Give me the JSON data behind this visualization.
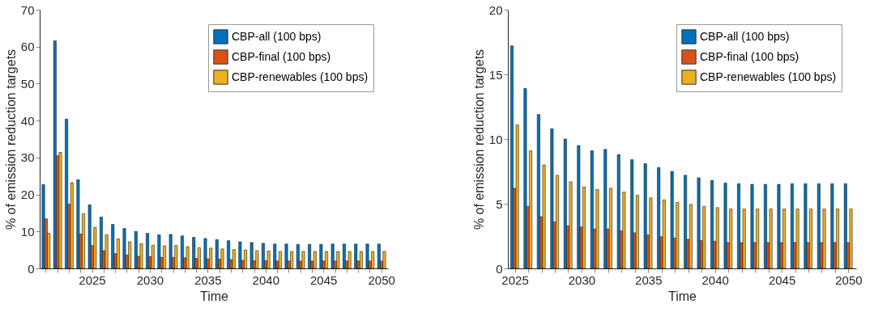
{
  "chart_data": [
    {
      "type": "bar",
      "xlabel": "Time",
      "ylabel": "% of emission reduction targets",
      "categories": [
        null,
        null,
        null,
        null,
        "2025",
        null,
        null,
        null,
        null,
        "2030",
        null,
        null,
        null,
        null,
        "2035",
        null,
        null,
        null,
        null,
        "2040",
        null,
        null,
        null,
        null,
        "2045",
        null,
        null,
        null,
        null,
        "2050"
      ],
      "series": [
        {
          "name": "CBP-all (100 bps)",
          "color": "#0072bd",
          "values": [
            22.7,
            61.6,
            40.4,
            24.0,
            17.2,
            13.9,
            11.9,
            10.8,
            10.0,
            9.5,
            9.1,
            9.2,
            8.8,
            8.4,
            8.1,
            7.8,
            7.5,
            7.2,
            7.0,
            6.8,
            6.6,
            6.6,
            6.5,
            6.5,
            6.5,
            6.6,
            6.6,
            6.6,
            6.6,
            6.6
          ]
        },
        {
          "name": "CBP-final (100 bps)",
          "color": "#d95319",
          "values": [
            13.4,
            30.5,
            17.4,
            9.3,
            6.2,
            4.8,
            4.0,
            3.6,
            3.3,
            3.2,
            3.0,
            3.0,
            2.9,
            2.7,
            2.6,
            2.5,
            2.4,
            2.2,
            2.1,
            2.1,
            2.0,
            2.0,
            2.0,
            2.0,
            2.0,
            2.0,
            2.0,
            2.0,
            2.0,
            2.0
          ]
        },
        {
          "name": "CBP-renewables (100 bps)",
          "color": "#edb120",
          "values": [
            9.5,
            31.4,
            23.2,
            14.8,
            11.1,
            9.1,
            8.0,
            7.2,
            6.7,
            6.3,
            6.1,
            6.2,
            5.9,
            5.6,
            5.5,
            5.3,
            5.1,
            5.0,
            4.8,
            4.7,
            4.6,
            4.6,
            4.6,
            4.6,
            4.6,
            4.6,
            4.6,
            4.6,
            4.6,
            4.6
          ]
        }
      ],
      "ylim": [
        0,
        70
      ],
      "yticks": [
        0,
        10,
        20,
        30,
        40,
        50,
        60,
        70
      ],
      "grid": false,
      "legend": "top right"
    },
    {
      "type": "bar",
      "xlabel": "Time",
      "ylabel": "% of emission reduction targets",
      "categories": [
        "2025",
        null,
        null,
        null,
        null,
        "2030",
        null,
        null,
        null,
        null,
        "2035",
        null,
        null,
        null,
        null,
        "2040",
        null,
        null,
        null,
        null,
        "2045",
        null,
        null,
        null,
        null,
        "2050"
      ],
      "series": [
        {
          "name": "CBP-all (100 bps)",
          "color": "#0072bd",
          "values": [
            17.2,
            13.9,
            11.9,
            10.8,
            10.0,
            9.5,
            9.1,
            9.2,
            8.8,
            8.4,
            8.1,
            7.8,
            7.5,
            7.2,
            7.0,
            6.8,
            6.6,
            6.55,
            6.5,
            6.5,
            6.5,
            6.55,
            6.55,
            6.55,
            6.55,
            6.55
          ]
        },
        {
          "name": "CBP-final (100 bps)",
          "color": "#d95319",
          "values": [
            6.2,
            4.8,
            4.0,
            3.6,
            3.3,
            3.2,
            3.05,
            3.05,
            2.9,
            2.75,
            2.6,
            2.45,
            2.35,
            2.25,
            2.15,
            2.1,
            2.0,
            2.0,
            2.0,
            2.0,
            2.0,
            2.0,
            2.0,
            2.0,
            2.0,
            2.0
          ]
        },
        {
          "name": "CBP-renewables (100 bps)",
          "color": "#edb120",
          "values": [
            11.1,
            9.1,
            8.0,
            7.2,
            6.7,
            6.3,
            6.1,
            6.2,
            5.9,
            5.65,
            5.45,
            5.3,
            5.1,
            4.95,
            4.8,
            4.7,
            4.6,
            4.6,
            4.6,
            4.6,
            4.6,
            4.6,
            4.6,
            4.6,
            4.6,
            4.6
          ]
        }
      ],
      "ylim": [
        0,
        20
      ],
      "yticks": [
        0,
        5,
        10,
        15,
        20
      ],
      "grid": false,
      "legend": "top right"
    }
  ]
}
